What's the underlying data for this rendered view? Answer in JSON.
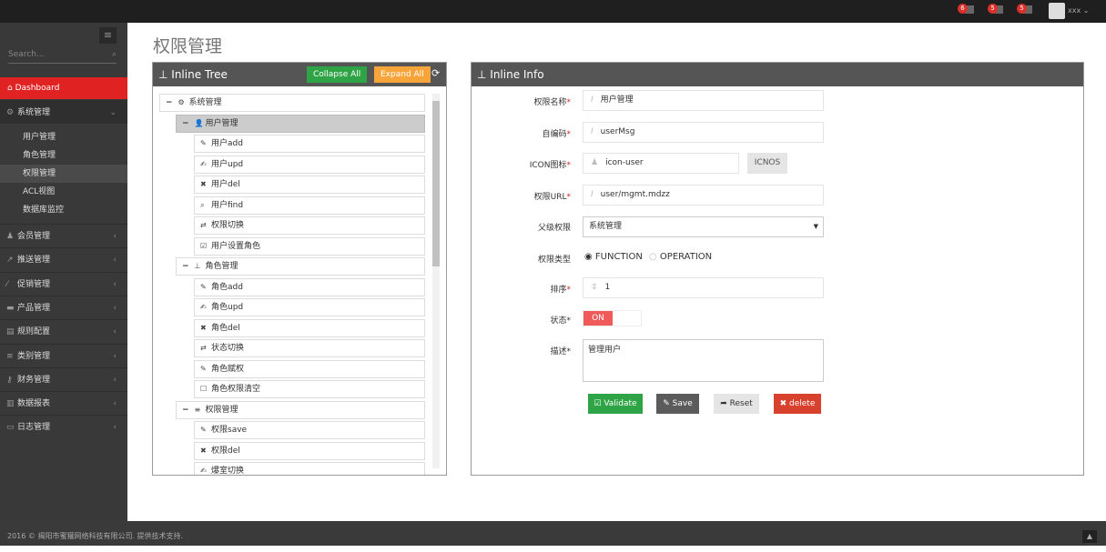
{
  "topbar": {
    "badges": [
      {
        "count": "6",
        "icon": "bell-icon"
      },
      {
        "count": "5",
        "icon": "envelope-icon"
      },
      {
        "count": "5",
        "icon": "tasks-icon"
      }
    ],
    "user": "xxx"
  },
  "sidebar": {
    "search_placeholder": "Search...",
    "dashboard": "Dashboard",
    "system": {
      "label": "系统管理",
      "subs": [
        "用户管理",
        "角色管理",
        "权限管理",
        "ACL视图",
        "数据库监控"
      ]
    },
    "items": [
      {
        "label": "会员管理",
        "icon": "user-icon"
      },
      {
        "label": "推送管理",
        "icon": "share-icon"
      },
      {
        "label": "促销管理",
        "icon": "tag-icon"
      },
      {
        "label": "产品管理",
        "icon": "box-icon"
      },
      {
        "label": "规则配置",
        "icon": "list-icon"
      },
      {
        "label": "类别管理",
        "icon": "bars-icon"
      },
      {
        "label": "财务管理",
        "icon": "key-icon"
      },
      {
        "label": "数据报表",
        "icon": "chart-icon"
      },
      {
        "label": "日志管理",
        "icon": "card-icon"
      }
    ]
  },
  "page_title": "权限管理",
  "tree": {
    "title": "Inline Tree",
    "collapse": "Collapse All",
    "expand": "Expand All",
    "nodes": [
      {
        "label": "系统管理",
        "level": 0,
        "icon": "⚙",
        "toggle": "−"
      },
      {
        "label": "用户管理",
        "level": 1,
        "icon": "👤",
        "toggle": "−",
        "selected": true
      },
      {
        "label": "用户add",
        "level": 2,
        "icon": "✎"
      },
      {
        "label": "用户upd",
        "level": 2,
        "icon": "✍"
      },
      {
        "label": "用户del",
        "level": 2,
        "icon": "✖"
      },
      {
        "label": "用户find",
        "level": 2,
        "icon": "⌕"
      },
      {
        "label": "权限切换",
        "level": 2,
        "icon": "⇄"
      },
      {
        "label": "用户设置角色",
        "level": 2,
        "icon": "☑"
      },
      {
        "label": "角色管理",
        "level": 1,
        "icon": "⊥",
        "toggle": "−"
      },
      {
        "label": "角色add",
        "level": 2,
        "icon": "✎"
      },
      {
        "label": "角色upd",
        "level": 2,
        "icon": "✍"
      },
      {
        "label": "角色del",
        "level": 2,
        "icon": "✖"
      },
      {
        "label": "状态切换",
        "level": 2,
        "icon": "⇄"
      },
      {
        "label": "角色赋权",
        "level": 2,
        "icon": "✎"
      },
      {
        "label": "角色权限清空",
        "level": 2,
        "icon": "☐"
      },
      {
        "label": "权限管理",
        "level": 1,
        "icon": "≡",
        "toggle": "−"
      },
      {
        "label": "权限save",
        "level": 2,
        "icon": "✎"
      },
      {
        "label": "权限del",
        "level": 2,
        "icon": "✖"
      },
      {
        "label": "爆室切换",
        "level": 2,
        "icon": "✍"
      }
    ]
  },
  "info": {
    "title": "Inline Info",
    "name_label": "权限名称",
    "name_value": "用户管理",
    "code_label": "自编码",
    "code_value": "userMsg",
    "icon_label": "ICON图标",
    "icon_value": "icon-user",
    "icnos_btn": "ICNOS",
    "url_label": "权限URL",
    "url_value": "user/mgmt.mdzz",
    "parent_label": "父级权限",
    "parent_value": "系统管理",
    "type_label": "权限类型",
    "type_options": [
      "FUNCTION",
      "OPERATION"
    ],
    "type_selected": "FUNCTION",
    "order_label": "排序",
    "order_value": "1",
    "status_label": "状态*",
    "status_value": "ON",
    "desc_label": "描述*",
    "desc_value": "管理用户",
    "buttons": {
      "validate": "Validate",
      "save": "Save",
      "reset": "Reset",
      "delete": "delete"
    },
    "colors": {
      "validate": "#2fa446",
      "save": "#5b5b5b",
      "reset": "#e5e5e5",
      "delete": "#d9412f",
      "toggle_on": "#ef5a5a"
    }
  },
  "footer": "2016 © 揭阳市蜜獾网络科技有限公司. 提供技术支持."
}
